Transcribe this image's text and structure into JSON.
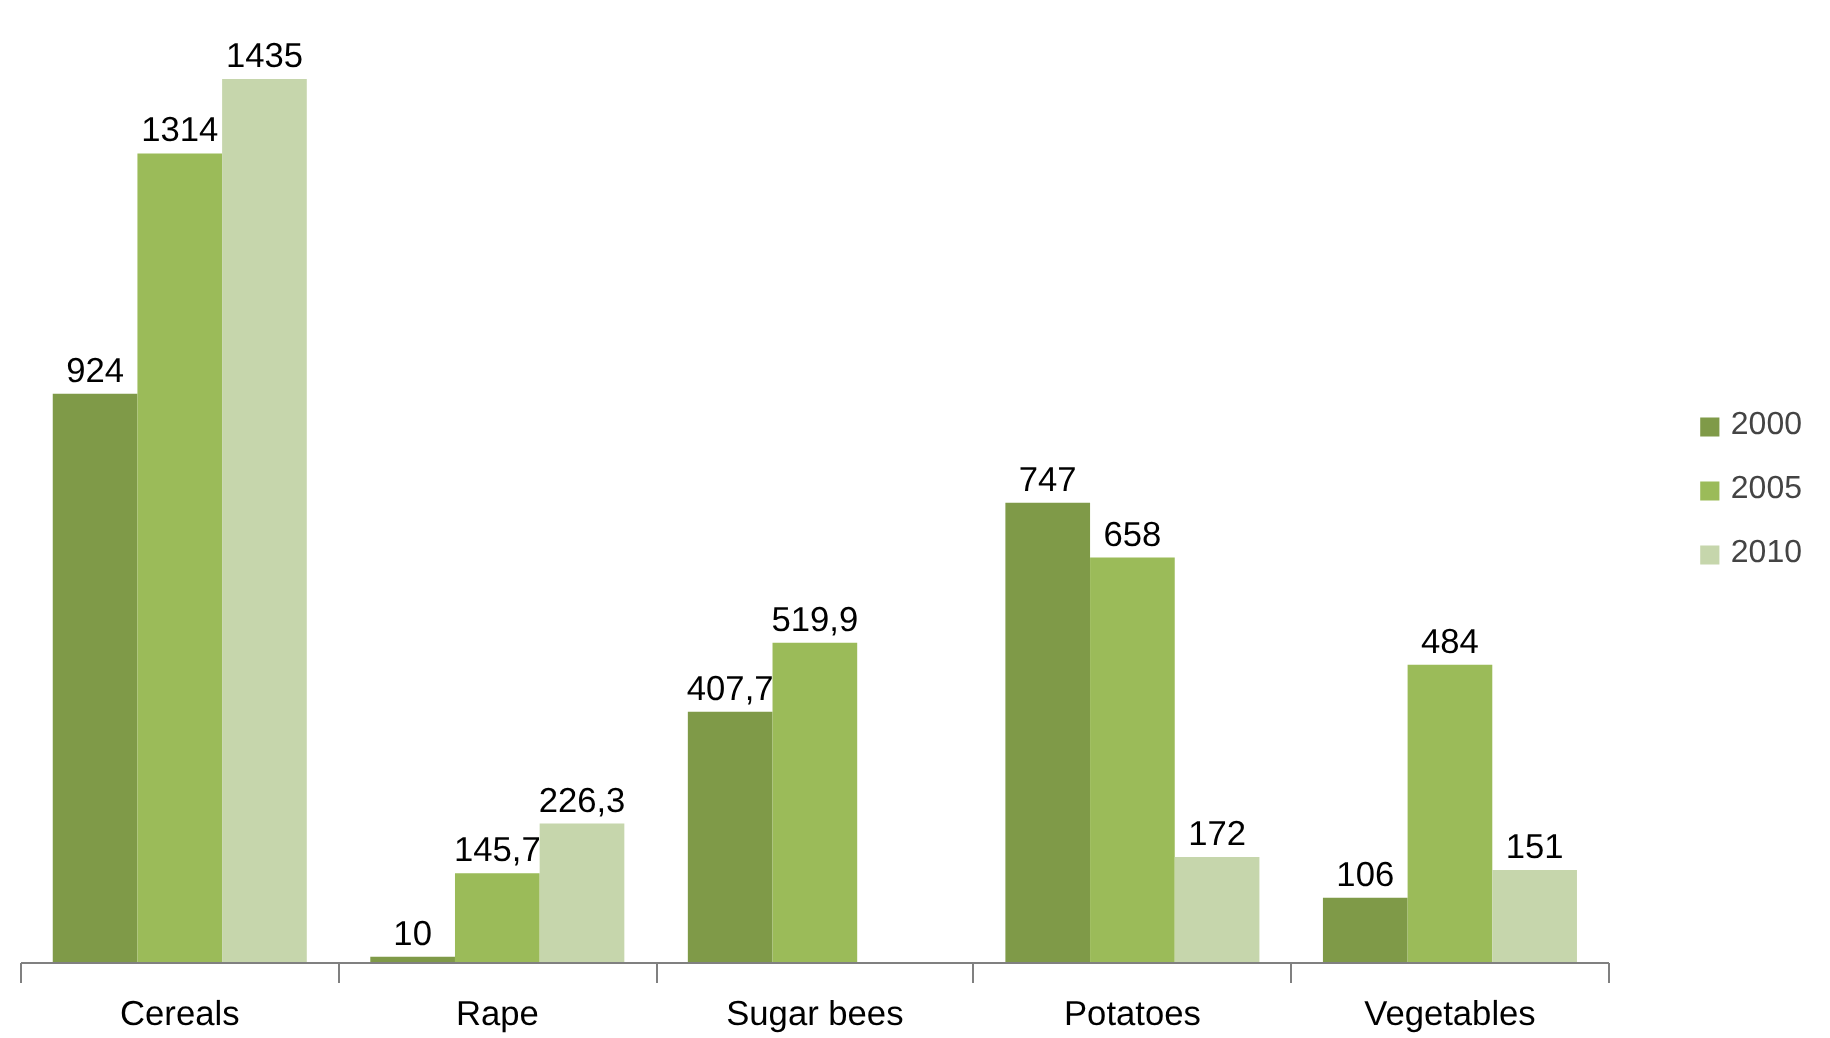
{
  "chart_data": {
    "type": "bar",
    "categories": [
      "Cereals",
      "Rape",
      "Sugar bees",
      "Potatoes",
      "Vegetables"
    ],
    "series": [
      {
        "name": "2000",
        "color": "#7f9a48",
        "values": [
          924,
          10,
          407.7,
          747,
          106
        ],
        "value_labels": [
          "924",
          "10",
          "407,7",
          "747",
          "106"
        ]
      },
      {
        "name": "2005",
        "color": "#9bbb59",
        "values": [
          1314,
          145.7,
          519.9,
          658,
          484
        ],
        "value_labels": [
          "1314",
          "145,7",
          "519,9",
          "658",
          "484"
        ]
      },
      {
        "name": "2010",
        "color": "#c6d6ac",
        "values": [
          1435,
          226.3,
          null,
          172,
          151
        ],
        "value_labels": [
          "1435",
          "226,3",
          null,
          "172",
          "151"
        ]
      }
    ],
    "legend": "right",
    "grid": false
  }
}
